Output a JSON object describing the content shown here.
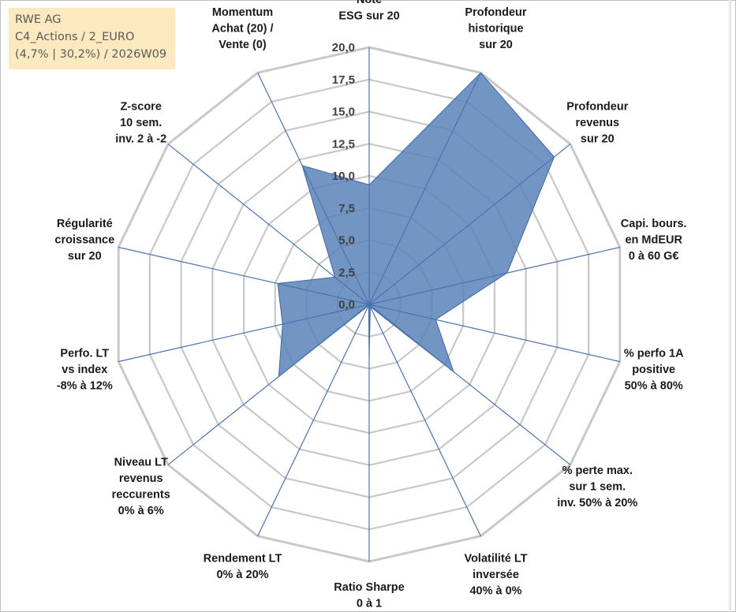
{
  "info_box": {
    "line1": "RWE AG",
    "line2": "C4_Actions / 2_EURO",
    "line3": "(4,7% | 30,2%) / 2026W09"
  },
  "colors": {
    "fill": "#5b82b8",
    "stroke": "#3f66a3",
    "grid": "#c8c8c8",
    "spoke": "#4a72b0",
    "info_bg": "#fde9c0"
  },
  "chart_data": {
    "type": "radar",
    "rmax": 20,
    "ticks": [
      "0,0",
      "2,5",
      "5,0",
      "7,5",
      "10,0",
      "12,5",
      "15,0",
      "17,5",
      "20,0"
    ],
    "categories": [
      [
        "Note",
        "ESG sur 20"
      ],
      [
        "Profondeur",
        "historique",
        "sur 20"
      ],
      [
        "Profondeur",
        "revenus",
        "sur 20"
      ],
      [
        "Capi. bours.",
        "en MdEUR",
        "0 à 60 G€"
      ],
      [
        "% perfo 1A",
        "positive",
        "50% à 80%"
      ],
      [
        "% perte max.",
        "sur 1 sem.",
        "inv. 50% à 20%"
      ],
      [
        "Volatilité LT",
        "inversée",
        "40% à 0%"
      ],
      [
        "Ratio Sharpe",
        "0 à 1"
      ],
      [
        "Rendement LT",
        "0% à 20%"
      ],
      [
        "Niveau LT",
        "revenus",
        "reccurents",
        "0% à 6%"
      ],
      [
        "Perfo. LT",
        "vs index",
        "-8% à 12%"
      ],
      [
        "Régularité",
        "croissance",
        "sur 20"
      ],
      [
        "Z-score",
        "10 sem.",
        "inv. 2 à -2"
      ],
      [
        "Momentum",
        "Achat (20) /",
        "Vente (0)"
      ]
    ],
    "values": [
      9.3,
      20.0,
      18.4,
      11.0,
      5.3,
      8.4,
      0.2,
      4.2,
      0.1,
      9.0,
      6.9,
      7.3,
      3.4,
      12.0
    ]
  }
}
